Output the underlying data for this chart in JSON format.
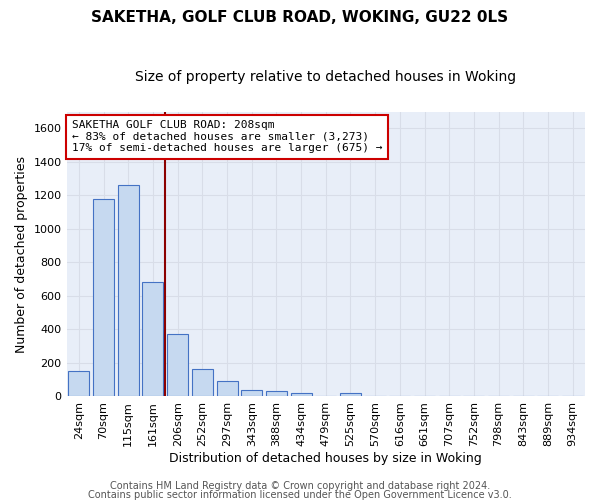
{
  "title": "SAKETHA, GOLF CLUB ROAD, WOKING, GU22 0LS",
  "subtitle": "Size of property relative to detached houses in Woking",
  "xlabel": "Distribution of detached houses by size in Woking",
  "ylabel": "Number of detached properties",
  "categories": [
    "24sqm",
    "70sqm",
    "115sqm",
    "161sqm",
    "206sqm",
    "252sqm",
    "297sqm",
    "343sqm",
    "388sqm",
    "434sqm",
    "479sqm",
    "525sqm",
    "570sqm",
    "616sqm",
    "661sqm",
    "707sqm",
    "752sqm",
    "798sqm",
    "843sqm",
    "889sqm",
    "934sqm"
  ],
  "values": [
    150,
    1180,
    1260,
    680,
    375,
    165,
    90,
    40,
    30,
    20,
    0,
    20,
    0,
    0,
    0,
    0,
    0,
    0,
    0,
    0,
    0
  ],
  "bar_color": "#c6d9f0",
  "bar_edge_color": "#4472c4",
  "vline_color": "#8b0000",
  "vline_x": 3.5,
  "annotation_line1": "SAKETHA GOLF CLUB ROAD: 208sqm",
  "annotation_line2": "← 83% of detached houses are smaller (3,273)",
  "annotation_line3": "17% of semi-detached houses are larger (675) →",
  "annotation_box_color": "#ffffff",
  "annotation_box_edge": "#cc0000",
  "ylim": [
    0,
    1700
  ],
  "yticks": [
    0,
    200,
    400,
    600,
    800,
    1000,
    1200,
    1400,
    1600
  ],
  "footer1": "Contains HM Land Registry data © Crown copyright and database right 2024.",
  "footer2": "Contains public sector information licensed under the Open Government Licence v3.0.",
  "bg_color": "#ffffff",
  "plot_bg_color": "#e8eef8",
  "grid_color": "#d8dde8",
  "title_fontsize": 11,
  "subtitle_fontsize": 10,
  "label_fontsize": 9,
  "tick_fontsize": 8,
  "annot_fontsize": 8,
  "footer_fontsize": 7
}
